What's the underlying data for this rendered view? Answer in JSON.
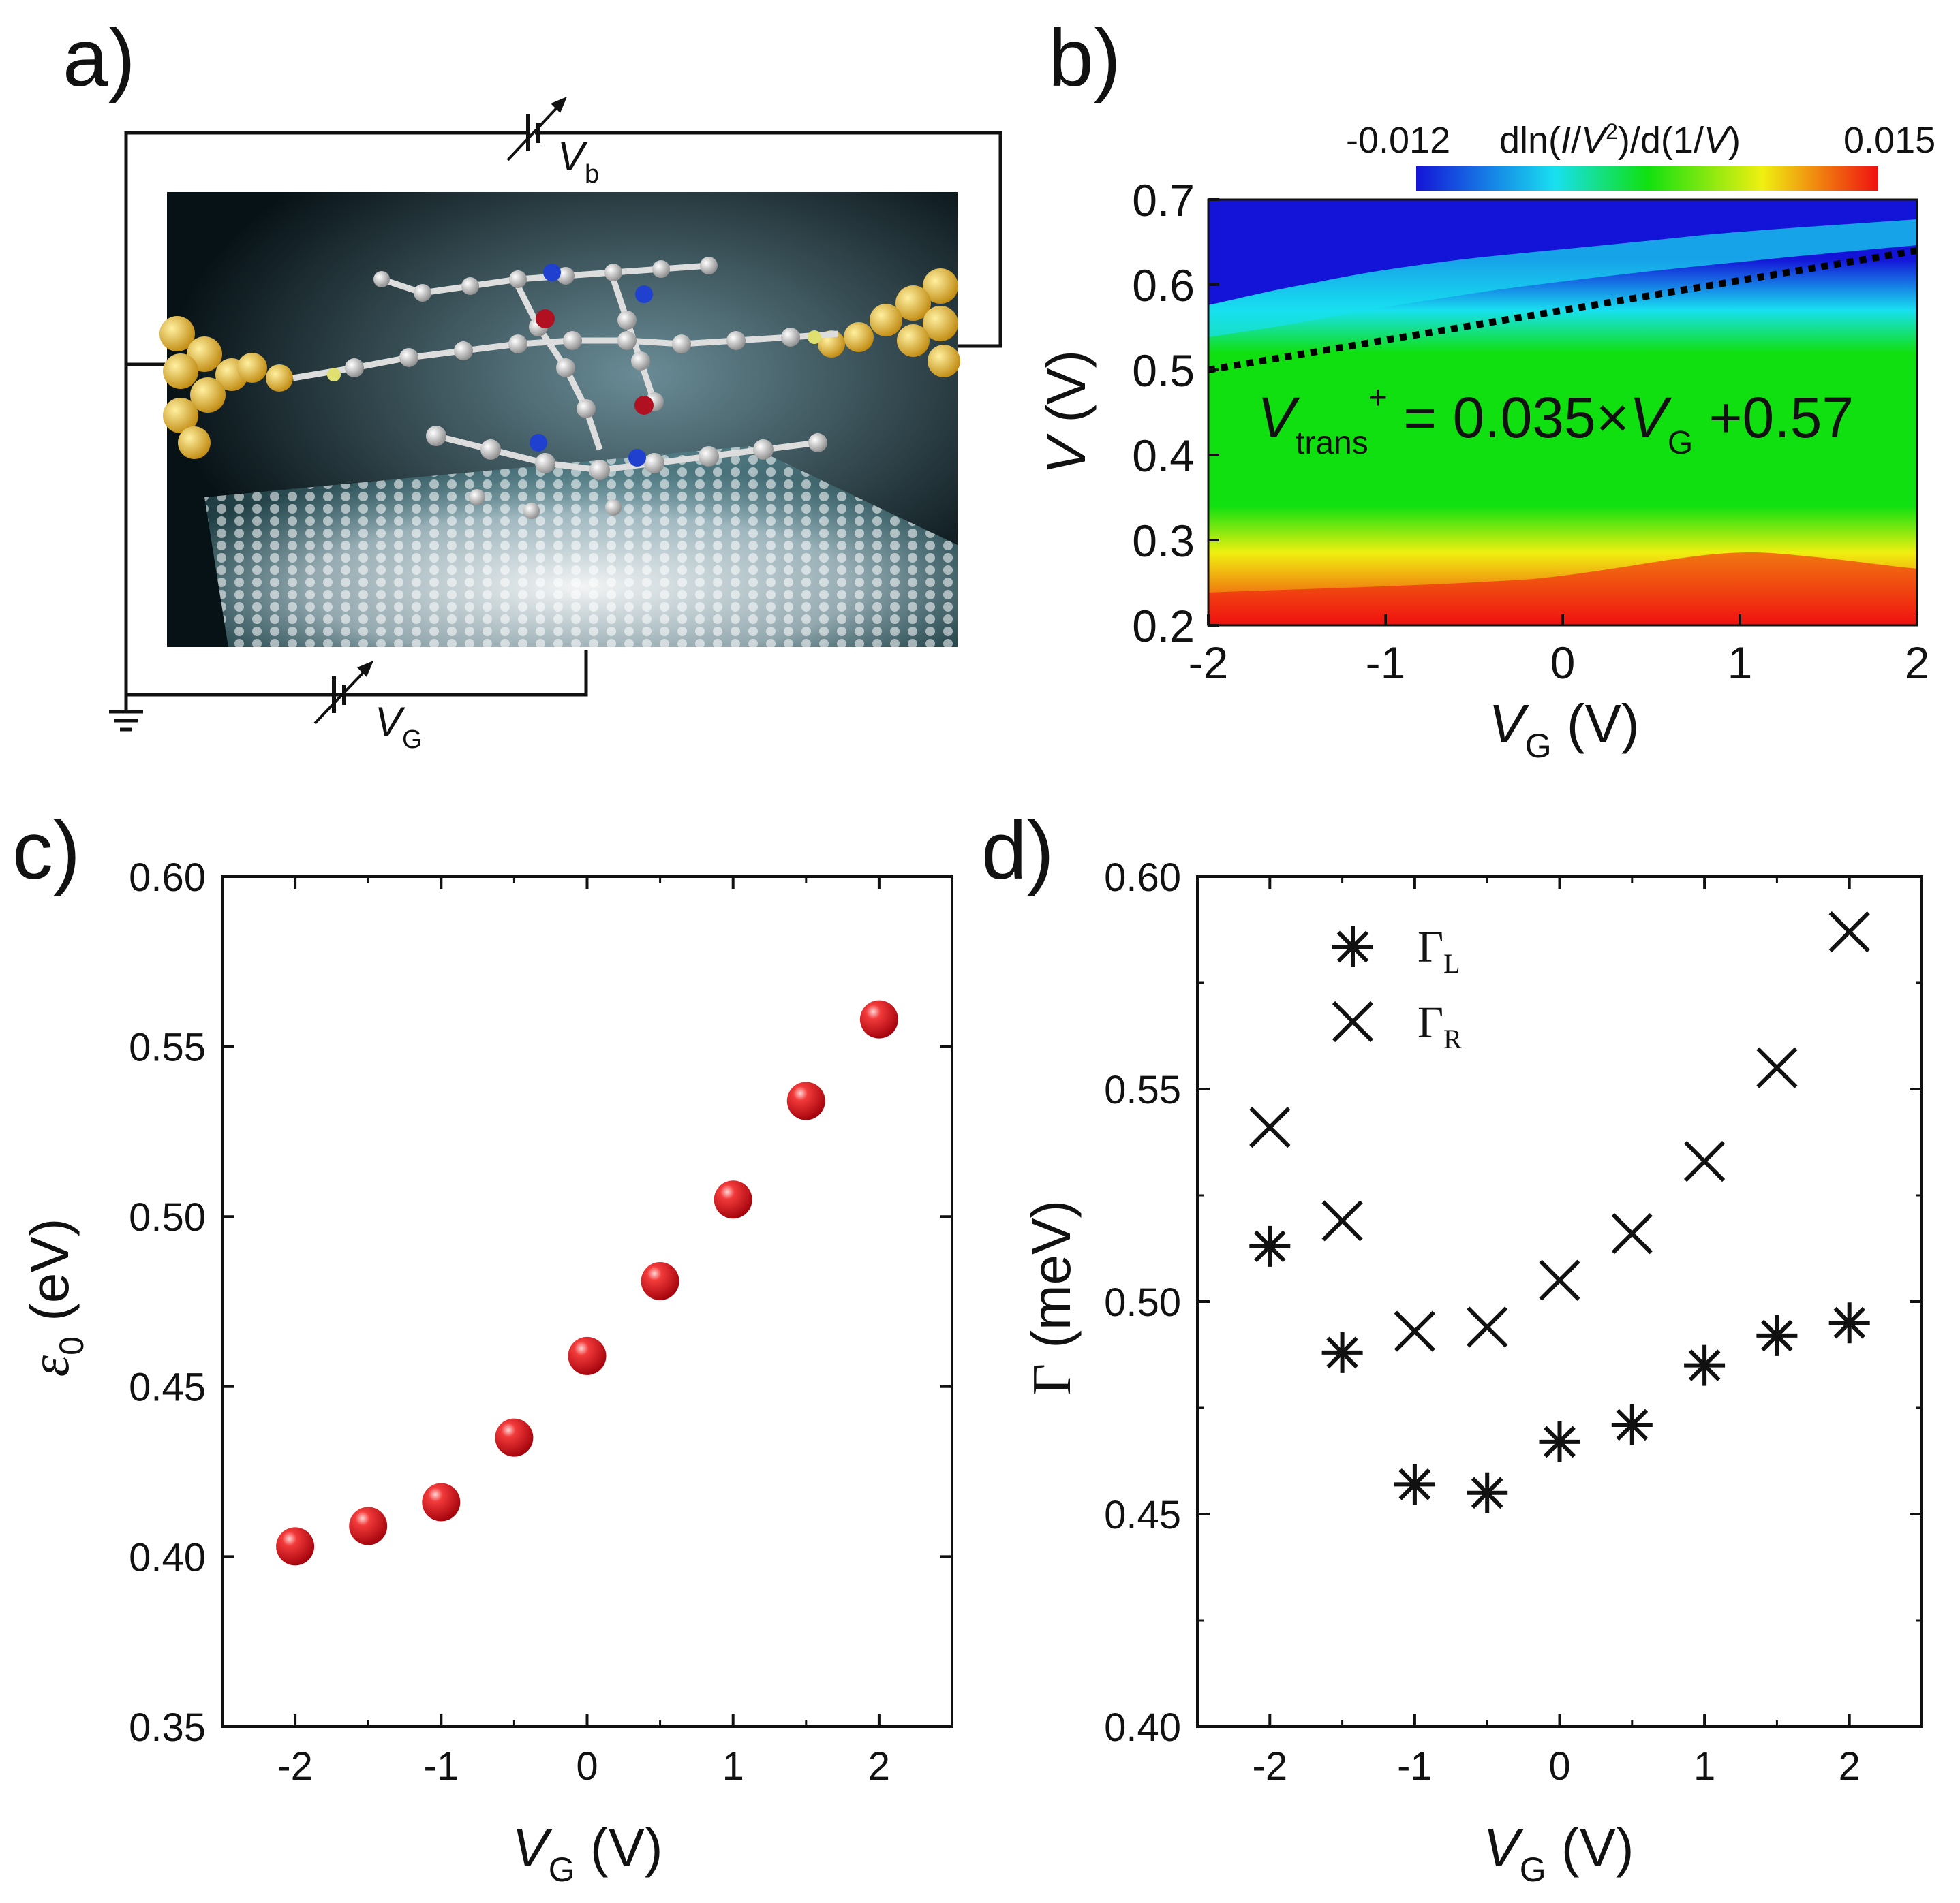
{
  "panels": {
    "a": {
      "letter": "a)"
    },
    "b": {
      "letter": "b)"
    },
    "c": {
      "letter": "c)"
    },
    "d": {
      "letter": "d)"
    }
  },
  "circuit": {
    "vb_symbol": "V",
    "vb_sub": "b",
    "vg_symbol": "V",
    "vg_sub": "G"
  },
  "colors": {
    "marker_red": "#e8141c",
    "map_blue": "#1414d8",
    "map_cyan": "#18e0f0",
    "map_green": "#10e010",
    "map_yellow": "#f0f010",
    "map_red": "#f01010",
    "gold": "#e0b020"
  },
  "chart_data": [
    {
      "panel": "b",
      "type": "heatmap",
      "colorbar": {
        "min_label": "-0.012",
        "max_label": "0.015",
        "label": "dln(I/V²)/d(1/V)",
        "min": -0.012,
        "max": 0.015
      },
      "xlabel": {
        "main": "V",
        "sub": "G",
        "unit": "(V)"
      },
      "ylabel": {
        "main": "V",
        "unit": "(V)"
      },
      "xlim": [
        -2,
        2
      ],
      "ylim": [
        0.2,
        0.7
      ],
      "xticks": [
        -2,
        -1,
        0,
        1,
        2
      ],
      "xtick_labels": [
        "-2",
        "-1",
        "0",
        "1",
        "2"
      ],
      "yticks": [
        0.2,
        0.3,
        0.4,
        0.5,
        0.6,
        0.7
      ],
      "ytick_labels": [
        "0.2",
        "0.3",
        "0.4",
        "0.5",
        "0.6",
        "0.7"
      ],
      "fit_line": {
        "slope": 0.035,
        "intercept": 0.57
      },
      "annotation": {
        "v": "V",
        "sub": "trans",
        "sup": "+",
        "rest": " = 0.035×",
        "v2": "V",
        "sub2": "G",
        "tail": " +0.57"
      }
    },
    {
      "panel": "c",
      "type": "scatter",
      "x": [
        -2,
        -1.5,
        -1,
        -0.5,
        0,
        0.5,
        1,
        1.5,
        2
      ],
      "y": [
        0.403,
        0.409,
        0.416,
        0.435,
        0.459,
        0.481,
        0.505,
        0.534,
        0.558
      ],
      "xlim": [
        -2.5,
        2.5
      ],
      "ylim": [
        0.35,
        0.6
      ],
      "xticks": [
        -2,
        -1,
        0,
        1,
        2
      ],
      "xtick_labels": [
        "-2",
        "-1",
        "0",
        "1",
        "2"
      ],
      "yticks": [
        0.35,
        0.4,
        0.45,
        0.5,
        0.55,
        0.6
      ],
      "ytick_labels": [
        "0.35",
        "0.40",
        "0.45",
        "0.50",
        "0.55",
        "0.60"
      ],
      "xlabel": {
        "main": "V",
        "sub": "G",
        "unit": "(V)"
      },
      "ylabel": {
        "main": "ε",
        "sub": "0",
        "unit": "(eV)"
      }
    },
    {
      "panel": "d",
      "type": "scatter",
      "series": [
        {
          "name": "Γ",
          "sub": "L",
          "marker": "asterisk",
          "x": [
            -2,
            -1.5,
            -1,
            -0.5,
            0,
            0.5,
            1,
            1.5,
            2
          ],
          "y": [
            0.513,
            0.488,
            0.457,
            0.455,
            0.467,
            0.471,
            0.485,
            0.492,
            0.495
          ]
        },
        {
          "name": "Γ",
          "sub": "R",
          "marker": "cross",
          "x": [
            -2,
            -1.5,
            -1,
            -0.5,
            0,
            0.5,
            1,
            1.5,
            2
          ],
          "y": [
            0.541,
            0.519,
            0.493,
            0.494,
            0.505,
            0.516,
            0.533,
            0.555,
            0.587
          ]
        }
      ],
      "xlim": [
        -2.5,
        2.5
      ],
      "ylim": [
        0.4,
        0.6
      ],
      "xticks": [
        -2,
        -1,
        0,
        1,
        2
      ],
      "xtick_labels": [
        "-2",
        "-1",
        "0",
        "1",
        "2"
      ],
      "yticks": [
        0.4,
        0.45,
        0.5,
        0.55,
        0.6
      ],
      "ytick_labels": [
        "0.40",
        "0.45",
        "0.50",
        "0.55",
        "0.60"
      ],
      "xlabel": {
        "main": "V",
        "sub": "G",
        "unit": "(V)"
      },
      "ylabel": {
        "main": "Γ",
        "unit": "(meV)"
      },
      "legend_position": "top-left"
    }
  ]
}
